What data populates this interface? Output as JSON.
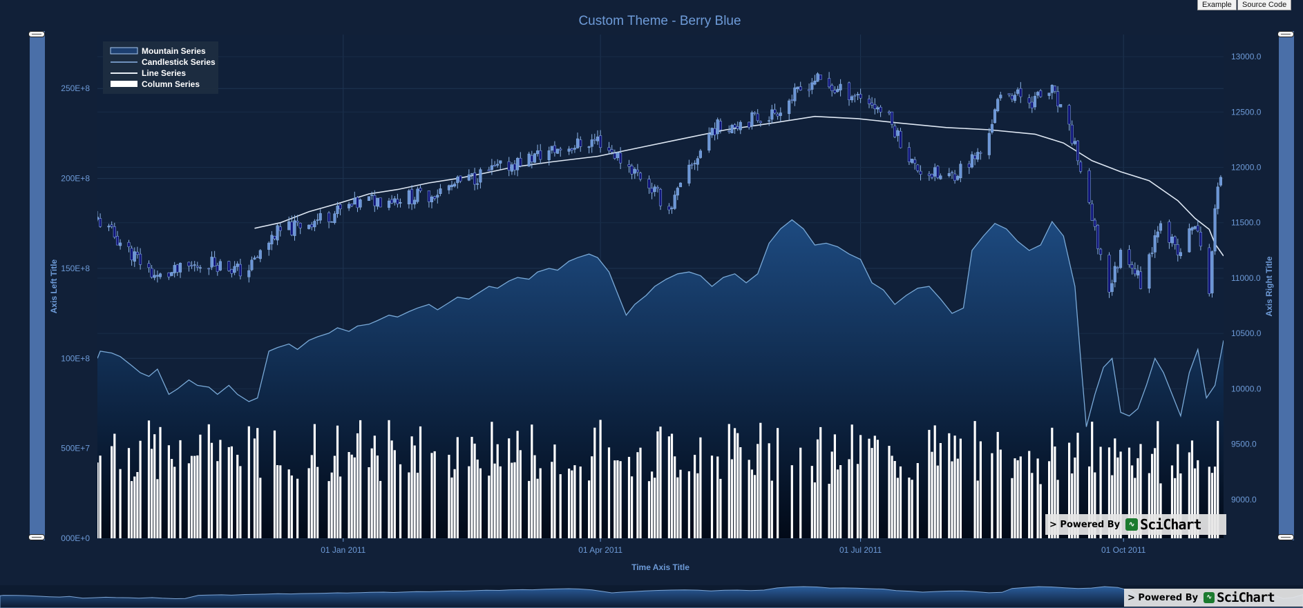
{
  "header_buttons": {
    "example": "Example",
    "source": "Source Code"
  },
  "chart_data": {
    "type": "line",
    "title": "Custom Theme - Berry Blue",
    "xlabel": "Time Axis Title",
    "ylabel_left": "Axis Left Title",
    "ylabel_right": "Axis Right Title",
    "x_range": [
      "2010-10-07",
      "2011-11-05"
    ],
    "x_ticks": [
      {
        "date": "2011-01-01",
        "label": "01 Jan 2011"
      },
      {
        "date": "2011-04-01",
        "label": "01 Apr 2011"
      },
      {
        "date": "2011-07-01",
        "label": "01 Jul 2011"
      },
      {
        "date": "2011-10-01",
        "label": "01 Oct 2011"
      }
    ],
    "y_left": {
      "range": [
        0,
        2800000000
      ],
      "ticks": [
        "000E+0",
        "500E+7",
        "100E+8",
        "150E+8",
        "200E+8",
        "250E+8"
      ],
      "tick_values": [
        0,
        500000000,
        1000000000,
        1500000000,
        2000000000,
        2500000000
      ]
    },
    "y_right": {
      "range": [
        8650,
        13200
      ],
      "ticks": [
        "9000.0",
        "9500.0",
        "10000.0",
        "10500.0",
        "11000.0",
        "11500.0",
        "12000.0",
        "12500.0",
        "13000.0"
      ],
      "tick_values": [
        9000,
        9500,
        10000,
        10500,
        11000,
        11500,
        12000,
        12500,
        13000
      ]
    },
    "grid": true,
    "legend": {
      "position": "top-left",
      "entries": [
        {
          "label": "Mountain Series",
          "kind": "mountain"
        },
        {
          "label": "Candlestick Series",
          "kind": "candle"
        },
        {
          "label": "Line Series",
          "kind": "line"
        },
        {
          "label": "Column Series",
          "kind": "column"
        }
      ]
    },
    "series": [
      {
        "name": "Mountain Series",
        "axis": "left",
        "kind": "mountain",
        "points": [
          [
            "2010-10-07",
            1000000000
          ],
          [
            "2010-10-08",
            1040000000
          ],
          [
            "2010-10-12",
            1030000000
          ],
          [
            "2010-10-15",
            1010000000
          ],
          [
            "2010-10-19",
            960000000
          ],
          [
            "2010-10-22",
            920000000
          ],
          [
            "2010-10-25",
            900000000
          ],
          [
            "2010-10-28",
            940000000
          ],
          [
            "2010-11-01",
            800000000
          ],
          [
            "2010-11-04",
            830000000
          ],
          [
            "2010-11-08",
            880000000
          ],
          [
            "2010-11-11",
            850000000
          ],
          [
            "2010-11-15",
            840000000
          ],
          [
            "2010-11-18",
            800000000
          ],
          [
            "2010-11-22",
            850000000
          ],
          [
            "2010-11-25",
            800000000
          ],
          [
            "2010-11-29",
            760000000
          ],
          [
            "2010-12-02",
            780000000
          ],
          [
            "2010-12-06",
            1040000000
          ],
          [
            "2010-12-09",
            1060000000
          ],
          [
            "2010-12-13",
            1080000000
          ],
          [
            "2010-12-16",
            1050000000
          ],
          [
            "2010-12-20",
            1100000000
          ],
          [
            "2010-12-23",
            1120000000
          ],
          [
            "2010-12-27",
            1140000000
          ],
          [
            "2010-12-30",
            1170000000
          ],
          [
            "2011-01-03",
            1150000000
          ],
          [
            "2011-01-06",
            1180000000
          ],
          [
            "2011-01-10",
            1190000000
          ],
          [
            "2011-01-13",
            1210000000
          ],
          [
            "2011-01-17",
            1240000000
          ],
          [
            "2011-01-20",
            1230000000
          ],
          [
            "2011-01-24",
            1260000000
          ],
          [
            "2011-01-27",
            1280000000
          ],
          [
            "2011-01-31",
            1300000000
          ],
          [
            "2011-02-03",
            1270000000
          ],
          [
            "2011-02-07",
            1310000000
          ],
          [
            "2011-02-10",
            1340000000
          ],
          [
            "2011-02-14",
            1330000000
          ],
          [
            "2011-02-17",
            1360000000
          ],
          [
            "2011-02-21",
            1400000000
          ],
          [
            "2011-02-24",
            1390000000
          ],
          [
            "2011-02-28",
            1430000000
          ],
          [
            "2011-03-03",
            1450000000
          ],
          [
            "2011-03-07",
            1440000000
          ],
          [
            "2011-03-10",
            1480000000
          ],
          [
            "2011-03-14",
            1500000000
          ],
          [
            "2011-03-17",
            1490000000
          ],
          [
            "2011-03-21",
            1540000000
          ],
          [
            "2011-03-24",
            1560000000
          ],
          [
            "2011-03-28",
            1580000000
          ],
          [
            "2011-03-31",
            1560000000
          ],
          [
            "2011-04-04",
            1480000000
          ],
          [
            "2011-04-07",
            1360000000
          ],
          [
            "2011-04-10",
            1240000000
          ],
          [
            "2011-04-13",
            1300000000
          ],
          [
            "2011-04-17",
            1350000000
          ],
          [
            "2011-04-20",
            1400000000
          ],
          [
            "2011-04-24",
            1440000000
          ],
          [
            "2011-04-28",
            1470000000
          ],
          [
            "2011-05-02",
            1480000000
          ],
          [
            "2011-05-06",
            1460000000
          ],
          [
            "2011-05-10",
            1400000000
          ],
          [
            "2011-05-14",
            1450000000
          ],
          [
            "2011-05-18",
            1470000000
          ],
          [
            "2011-05-22",
            1420000000
          ],
          [
            "2011-05-26",
            1470000000
          ],
          [
            "2011-05-30",
            1640000000
          ],
          [
            "2011-06-03",
            1720000000
          ],
          [
            "2011-06-07",
            1770000000
          ],
          [
            "2011-06-11",
            1720000000
          ],
          [
            "2011-06-15",
            1630000000
          ],
          [
            "2011-06-19",
            1640000000
          ],
          [
            "2011-06-23",
            1620000000
          ],
          [
            "2011-06-27",
            1580000000
          ],
          [
            "2011-07-01",
            1550000000
          ],
          [
            "2011-07-05",
            1420000000
          ],
          [
            "2011-07-09",
            1380000000
          ],
          [
            "2011-07-13",
            1300000000
          ],
          [
            "2011-07-17",
            1350000000
          ],
          [
            "2011-07-21",
            1390000000
          ],
          [
            "2011-07-25",
            1400000000
          ],
          [
            "2011-07-29",
            1330000000
          ],
          [
            "2011-08-02",
            1250000000
          ],
          [
            "2011-08-06",
            1280000000
          ],
          [
            "2011-08-09",
            1600000000
          ],
          [
            "2011-08-13",
            1680000000
          ],
          [
            "2011-08-17",
            1750000000
          ],
          [
            "2011-08-21",
            1720000000
          ],
          [
            "2011-08-25",
            1650000000
          ],
          [
            "2011-08-29",
            1600000000
          ],
          [
            "2011-09-02",
            1630000000
          ],
          [
            "2011-09-06",
            1760000000
          ],
          [
            "2011-09-10",
            1680000000
          ],
          [
            "2011-09-14",
            1400000000
          ],
          [
            "2011-09-16",
            1000000000
          ],
          [
            "2011-09-18",
            620000000
          ],
          [
            "2011-09-21",
            800000000
          ],
          [
            "2011-09-24",
            950000000
          ],
          [
            "2011-09-27",
            1000000000
          ],
          [
            "2011-09-30",
            700000000
          ],
          [
            "2011-10-03",
            680000000
          ],
          [
            "2011-10-06",
            720000000
          ],
          [
            "2011-10-09",
            850000000
          ],
          [
            "2011-10-12",
            1000000000
          ],
          [
            "2011-10-15",
            920000000
          ],
          [
            "2011-10-18",
            800000000
          ],
          [
            "2011-10-21",
            680000000
          ],
          [
            "2011-10-24",
            920000000
          ],
          [
            "2011-10-27",
            1050000000
          ],
          [
            "2011-10-30",
            780000000
          ],
          [
            "2011-11-02",
            850000000
          ],
          [
            "2011-11-05",
            1100000000
          ]
        ]
      },
      {
        "name": "Line Series",
        "axis": "right",
        "kind": "line",
        "points": [
          [
            "2010-12-01",
            11450
          ],
          [
            "2010-12-10",
            11500
          ],
          [
            "2010-12-20",
            11600
          ],
          [
            "2010-12-31",
            11680
          ],
          [
            "2011-01-10",
            11760
          ],
          [
            "2011-01-20",
            11800
          ],
          [
            "2011-01-31",
            11860
          ],
          [
            "2011-02-10",
            11900
          ],
          [
            "2011-02-20",
            11950
          ],
          [
            "2011-03-01",
            12000
          ],
          [
            "2011-03-15",
            12050
          ],
          [
            "2011-03-31",
            12100
          ],
          [
            "2011-04-15",
            12180
          ],
          [
            "2011-04-30",
            12260
          ],
          [
            "2011-05-15",
            12340
          ],
          [
            "2011-05-31",
            12400
          ],
          [
            "2011-06-15",
            12460
          ],
          [
            "2011-06-30",
            12440
          ],
          [
            "2011-07-15",
            12400
          ],
          [
            "2011-07-31",
            12360
          ],
          [
            "2011-08-15",
            12340
          ],
          [
            "2011-08-31",
            12300
          ],
          [
            "2011-09-10",
            12220
          ],
          [
            "2011-09-20",
            12060
          ],
          [
            "2011-09-30",
            11960
          ],
          [
            "2011-10-10",
            11880
          ],
          [
            "2011-10-20",
            11700
          ],
          [
            "2011-10-26",
            11540
          ],
          [
            "2011-10-31",
            11440
          ],
          [
            "2011-11-02",
            11310
          ],
          [
            "2011-11-05",
            11200
          ]
        ]
      },
      {
        "name": "Candlestick Series",
        "axis": "right",
        "kind": "candle",
        "anchors": [
          [
            "2010-10-07",
            11530
          ],
          [
            "2010-10-18",
            11250
          ],
          [
            "2010-10-28",
            11000
          ],
          [
            "2010-11-15",
            11150
          ],
          [
            "2010-11-28",
            11050
          ],
          [
            "2010-12-08",
            11400
          ],
          [
            "2010-12-25",
            11550
          ],
          [
            "2011-01-10",
            11700
          ],
          [
            "2011-01-31",
            11750
          ],
          [
            "2011-02-20",
            11950
          ],
          [
            "2011-03-15",
            12150
          ],
          [
            "2011-03-31",
            12250
          ],
          [
            "2011-04-16",
            11900
          ],
          [
            "2011-04-25",
            11620
          ],
          [
            "2011-05-10",
            12350
          ],
          [
            "2011-05-31",
            12480
          ],
          [
            "2011-06-15",
            12800
          ],
          [
            "2011-06-22",
            12700
          ],
          [
            "2011-07-01",
            12650
          ],
          [
            "2011-07-10",
            12480
          ],
          [
            "2011-07-20",
            12000
          ],
          [
            "2011-07-31",
            11890
          ],
          [
            "2011-08-12",
            12130
          ],
          [
            "2011-08-20",
            12700
          ],
          [
            "2011-08-30",
            12600
          ],
          [
            "2011-09-06",
            12690
          ],
          [
            "2011-09-14",
            12200
          ],
          [
            "2011-09-20",
            11500
          ],
          [
            "2011-09-26",
            10900
          ],
          [
            "2011-10-01",
            11300
          ],
          [
            "2011-10-07",
            10960
          ],
          [
            "2011-10-14",
            11550
          ],
          [
            "2011-10-20",
            11200
          ],
          [
            "2011-10-26",
            11500
          ],
          [
            "2011-10-31",
            10900
          ],
          [
            "2011-11-02",
            11600
          ],
          [
            "2011-11-05",
            12100
          ]
        ]
      },
      {
        "name": "Column Series",
        "axis": "left",
        "kind": "column",
        "range_min": 300000000,
        "range_max": 780000000
      }
    ],
    "watermark": {
      "powered_by": "> Powered By",
      "brand": "SciChart"
    }
  },
  "overview": {
    "powered_by": "> Powered By",
    "brand": "SciChart"
  }
}
